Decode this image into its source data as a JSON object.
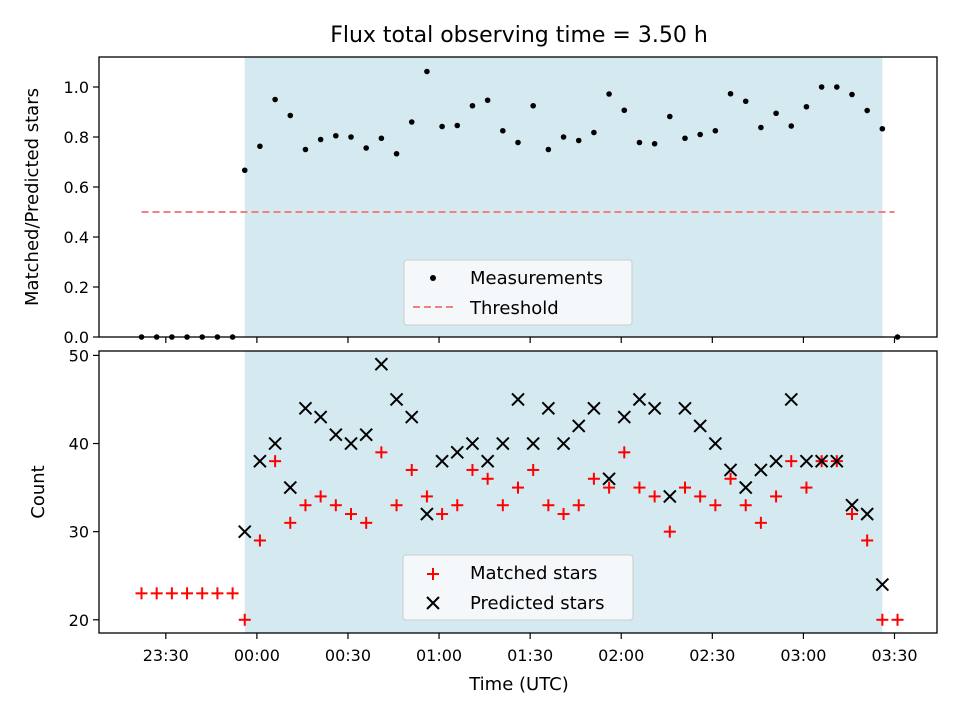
{
  "title": "Flux total observing time = 3.50 h",
  "xlabel": "Time (UTC)",
  "x_ticks": [
    "23:30",
    "00:00",
    "00:30",
    "01:00",
    "01:30",
    "02:00",
    "02:30",
    "03:00",
    "03:30"
  ],
  "top_panel": {
    "ylabel": "Matched/Predicted stars",
    "y_ticks": [
      "0.0",
      "0.2",
      "0.4",
      "0.6",
      "0.8",
      "1.0"
    ],
    "legend": {
      "measurements_label": "Measurements",
      "threshold_label": "Threshold"
    }
  },
  "bottom_panel": {
    "ylabel": "Count",
    "y_ticks": [
      "20",
      "30",
      "40",
      "50"
    ],
    "legend": {
      "matched_label": "Matched stars",
      "predicted_label": "Predicted stars"
    }
  },
  "colors": {
    "observing_span": "#d4eaf0",
    "measurement": "#000000",
    "threshold": "#f28080",
    "matched": "#ff0000",
    "predicted": "#000000"
  },
  "chart_data": [
    {
      "type": "scatter",
      "panel": "top",
      "xlabel": "",
      "ylabel": "Matched/Predicted stars",
      "x_unit": "minutes after 00:00 UTC",
      "xlim": [
        -52,
        224
      ],
      "ylim": [
        0.0,
        1.12
      ],
      "observing_span_minutes": [
        -4,
        206
      ],
      "threshold": {
        "value": 0.5,
        "x_range": [
          -38,
          210
        ]
      },
      "legend_position": "lower center",
      "series": [
        {
          "name": "Measurements",
          "x": [
            -38,
            -33,
            -28,
            -23,
            -18,
            -13,
            -8,
            -4,
            1,
            6,
            11,
            16,
            21,
            26,
            31,
            36,
            41,
            46,
            51,
            56,
            61,
            66,
            71,
            76,
            81,
            86,
            91,
            96,
            101,
            106,
            111,
            116,
            121,
            126,
            131,
            136,
            141,
            146,
            151,
            156,
            161,
            166,
            171,
            176,
            181,
            186,
            191,
            196,
            201,
            206,
            211
          ],
          "y": [
            0,
            0,
            0,
            0,
            0,
            0,
            0,
            0.667,
            0.763,
            0.95,
            0.886,
            0.75,
            0.79,
            0.805,
            0.8,
            0.756,
            0.795,
            0.733,
            0.86,
            1.062,
            0.842,
            0.846,
            0.925,
            0.947,
            0.825,
            0.778,
            0.925,
            0.75,
            0.8,
            0.786,
            0.818,
            0.972,
            0.907,
            0.778,
            0.773,
            0.882,
            0.795,
            0.81,
            0.825,
            0.973,
            0.943,
            0.838,
            0.895,
            0.844,
            0.921,
            1.0,
            1.0,
            0.97,
            0.906,
            0.833,
            0
          ]
        }
      ]
    },
    {
      "type": "scatter",
      "panel": "bottom",
      "xlabel": "Time (UTC)",
      "ylabel": "Count",
      "x_unit": "minutes after 00:00 UTC",
      "xlim": [
        -52,
        224
      ],
      "ylim": [
        18.5,
        50.5
      ],
      "observing_span_minutes": [
        -4,
        206
      ],
      "legend_position": "lower center",
      "series": [
        {
          "name": "Matched stars",
          "marker": "plus",
          "x": [
            -38,
            -33,
            -28,
            -23,
            -18,
            -13,
            -8,
            -4,
            1,
            6,
            11,
            16,
            21,
            26,
            31,
            36,
            41,
            46,
            51,
            56,
            61,
            66,
            71,
            76,
            81,
            86,
            91,
            96,
            101,
            106,
            111,
            116,
            121,
            126,
            131,
            136,
            141,
            146,
            151,
            156,
            161,
            166,
            171,
            176,
            181,
            186,
            191,
            196,
            201,
            206,
            211
          ],
          "y": [
            23,
            23,
            23,
            23,
            23,
            23,
            23,
            20,
            29,
            38,
            31,
            33,
            34,
            33,
            32,
            31,
            39,
            33,
            37,
            34,
            32,
            33,
            37,
            36,
            33,
            35,
            37,
            33,
            32,
            33,
            36,
            35,
            39,
            35,
            34,
            30,
            35,
            34,
            33,
            36,
            33,
            31,
            34,
            38,
            35,
            38,
            38,
            32,
            29,
            20,
            20
          ]
        },
        {
          "name": "Predicted stars",
          "marker": "x",
          "x": [
            -4,
            1,
            6,
            11,
            16,
            21,
            26,
            31,
            36,
            41,
            46,
            51,
            56,
            61,
            66,
            71,
            76,
            81,
            86,
            91,
            96,
            101,
            106,
            111,
            116,
            121,
            126,
            131,
            136,
            141,
            146,
            151,
            156,
            161,
            166,
            171,
            176,
            181,
            186,
            191,
            196,
            201,
            206
          ],
          "y": [
            30,
            38,
            40,
            35,
            44,
            43,
            41,
            40,
            41,
            49,
            45,
            43,
            32,
            38,
            39,
            40,
            38,
            40,
            45,
            40,
            44,
            40,
            42,
            44,
            36,
            43,
            45,
            44,
            34,
            44,
            42,
            40,
            37,
            35,
            37,
            38,
            45,
            38,
            38,
            38,
            33,
            32,
            24
          ]
        }
      ]
    }
  ]
}
